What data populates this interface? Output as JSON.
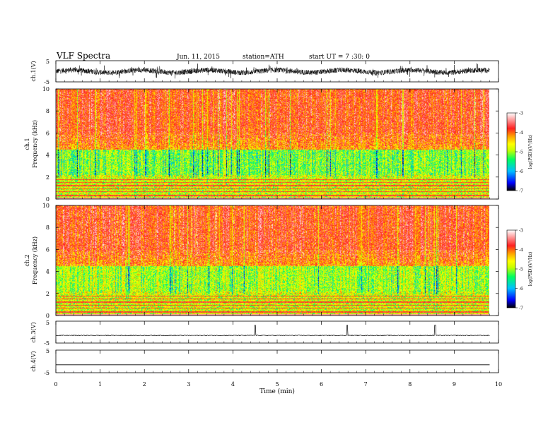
{
  "header": {
    "title": "VLF  Spectra",
    "date": "Jun. 11, 2015",
    "station": "station=ATH",
    "start": "start  UT  =   7  :30: 0"
  },
  "chart_data": [
    {
      "type": "line",
      "ylabel": "ch.1(V)",
      "ylim": [
        -5,
        5
      ],
      "yticks": [
        "5",
        "-5"
      ],
      "trace": "dense broadband noise, about ±2.5 V around 0"
    },
    {
      "type": "heatmap",
      "ylabel_channel": "ch.1",
      "ylabel": "Frequency  (kHz)",
      "ylim": [
        0,
        10
      ],
      "yticks": [
        "10",
        "8",
        "6",
        "4",
        "2",
        "0"
      ],
      "colorbar": {
        "label": "log(PSD)(V²/Hz)",
        "range": [
          -7,
          -3
        ],
        "ticks": [
          "-3",
          "-4",
          "-5",
          "-6",
          "-7"
        ]
      }
    },
    {
      "type": "heatmap",
      "ylabel_channel": "ch.2",
      "ylabel": "Frequency  (kHz)",
      "ylim": [
        0,
        10
      ],
      "yticks": [
        "10",
        "8",
        "6",
        "4",
        "2",
        "0"
      ],
      "colorbar": {
        "label": "log(PSD)(V²/Hz)",
        "range": [
          -7,
          -3
        ],
        "ticks": [
          "-3",
          "-4",
          "-5",
          "-6",
          "-7"
        ]
      }
    },
    {
      "type": "line",
      "ylabel": "ch.3(V)",
      "ylim": [
        -5,
        5
      ],
      "yticks": [
        "5",
        "-5"
      ],
      "trace": "near -1.5 V with spikes at about 4.5, 6.6 and 8.6 min"
    },
    {
      "type": "line",
      "ylabel": "ch.4(V)",
      "ylim": [
        -5,
        5
      ],
      "yticks": [
        "5",
        "-5"
      ],
      "trace": "flat near -1.5 V"
    }
  ],
  "xaxis": {
    "label": "Time  (min)",
    "xlim": [
      0,
      10
    ],
    "ticks": [
      "0",
      "1",
      "2",
      "3",
      "4",
      "5",
      "6",
      "7",
      "8",
      "9",
      "10"
    ],
    "data_end": 9.8
  },
  "colors": {
    "cmap": [
      "#000000",
      "#0000ff",
      "#00c0ff",
      "#00ff60",
      "#c8ff00",
      "#ffff00",
      "#ffa000",
      "#ff2020",
      "#ff9090",
      "#ffffff"
    ]
  }
}
